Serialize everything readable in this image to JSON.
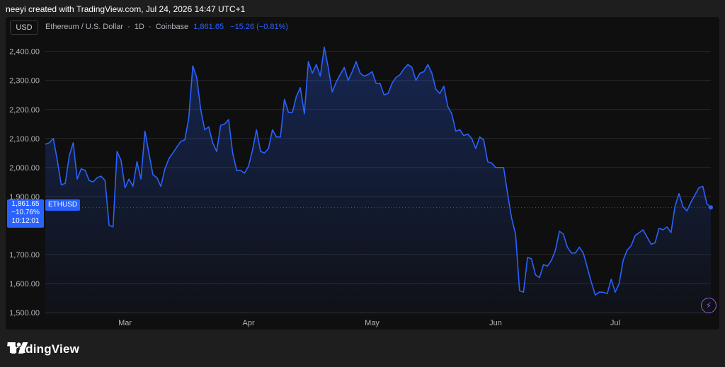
{
  "header": {
    "caption": "neeyi created with TradingView.com, Jul 24, 2026 14:47 UTC+1"
  },
  "toolbar": {
    "currency_label": "USD"
  },
  "legend": {
    "symbol": "Ethereum / U.S. Dollar",
    "interval": "1D",
    "exchange": "Coinbase",
    "last_price": "1,861.65",
    "change": "−15.26 (−0.81%)",
    "sep": "·",
    "slash_sep": "/"
  },
  "price_label": {
    "price": "1,861.65",
    "change_pct": "−10.76%",
    "countdown": "10:12:01",
    "symbol": "ETHUSD"
  },
  "brand": {
    "name": "TradingView"
  },
  "colors": {
    "line": "#2962ff",
    "background": "#0f0f0f",
    "grid": "#2a2a2a",
    "text": "#b2b5be",
    "badge": "#2962ff"
  },
  "icons": {
    "alert": "bolt-icon",
    "logo": "tradingview-logo-icon"
  },
  "chart_data": {
    "type": "area",
    "title": "Ethereum / U.S. Dollar · 1D · Coinbase",
    "xlabel": "",
    "ylabel": "",
    "ylim": [
      1490,
      2470
    ],
    "y_ticks": [
      1500,
      1600,
      1700,
      1900,
      2000,
      2100,
      2200,
      2300,
      2400
    ],
    "y_tick_labels": [
      "1,500.00",
      "1,600.00",
      "1,700.00",
      "1,900.00",
      "2,000.00",
      "2,100.00",
      "2,200.00",
      "2,300.00",
      "2,400.00"
    ],
    "x_tick_labels": [
      "Mar",
      "Apr",
      "May",
      "Jun",
      "Jul"
    ],
    "x_tick_index": [
      20,
      51,
      82,
      113,
      143
    ],
    "current_price": 1861.65,
    "series": [
      {
        "values": [
          2080,
          2085,
          2100,
          2025,
          1940,
          1945,
          2040,
          2085,
          1960,
          1995,
          1990,
          1955,
          1950,
          1965,
          1970,
          1955,
          1800,
          1795,
          2055,
          2025,
          1930,
          1960,
          1935,
          2020,
          1960,
          2125,
          2050,
          1975,
          1965,
          1935,
          1995,
          2030,
          2050,
          2070,
          2090,
          2095,
          2170,
          2350,
          2310,
          2200,
          2130,
          2140,
          2085,
          2055,
          2145,
          2150,
          2165,
          2050,
          1990,
          1990,
          1980,
          2005,
          2060,
          2130,
          2055,
          2050,
          2065,
          2130,
          2105,
          2105,
          2235,
          2190,
          2190,
          2245,
          2275,
          2185,
          2365,
          2325,
          2355,
          2315,
          2415,
          2345,
          2260,
          2295,
          2320,
          2345,
          2300,
          2330,
          2365,
          2325,
          2315,
          2320,
          2330,
          2290,
          2290,
          2250,
          2255,
          2290,
          2310,
          2320,
          2340,
          2355,
          2345,
          2300,
          2325,
          2330,
          2355,
          2325,
          2270,
          2255,
          2280,
          2210,
          2185,
          2125,
          2130,
          2110,
          2115,
          2100,
          2065,
          2105,
          2095,
          2020,
          2015,
          2000,
          2000,
          2000,
          1910,
          1825,
          1770,
          1575,
          1570,
          1690,
          1685,
          1630,
          1620,
          1665,
          1660,
          1680,
          1715,
          1780,
          1770,
          1725,
          1705,
          1705,
          1725,
          1705,
          1655,
          1605,
          1560,
          1570,
          1570,
          1565,
          1615,
          1570,
          1600,
          1680,
          1715,
          1730,
          1765,
          1775,
          1785,
          1760,
          1735,
          1740,
          1790,
          1785,
          1795,
          1775,
          1865,
          1910,
          1865,
          1850,
          1880,
          1905,
          1930,
          1935,
          1875,
          1862
        ]
      }
    ]
  }
}
